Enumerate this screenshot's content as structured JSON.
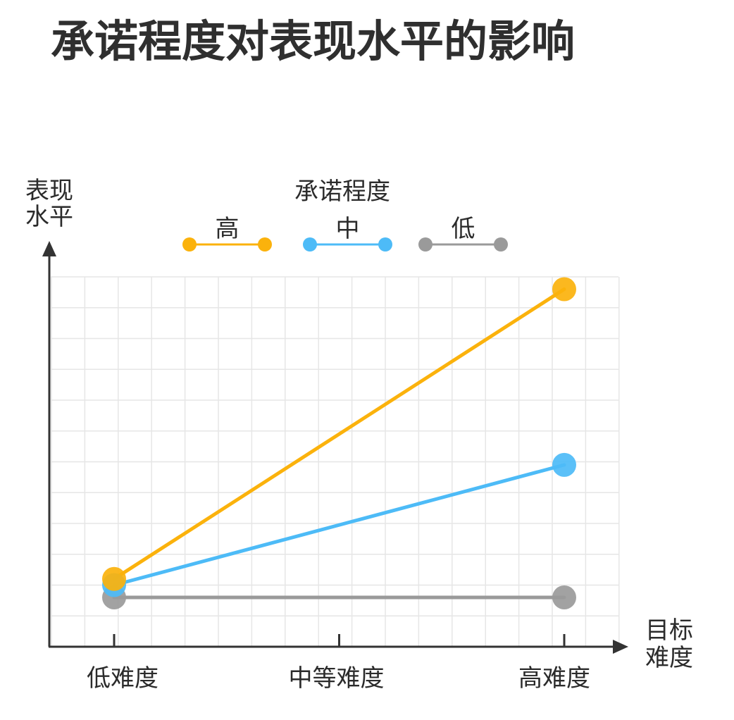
{
  "title": "承诺程度对表现水平的影响",
  "chart_data": {
    "type": "line",
    "title": "承诺程度对表现水平的影响",
    "ylabel_lines": [
      "表现",
      "水平"
    ],
    "xlabel_lines": [
      "目标",
      "难度"
    ],
    "legend_title": "承诺程度",
    "legend_position": "top",
    "categories": [
      "低难度",
      "中等难度",
      "高难度"
    ],
    "x_positions": [
      0,
      1,
      2
    ],
    "ylim": [
      0,
      12
    ],
    "grid": true,
    "series": [
      {
        "name": "高",
        "color": "#FBB20C",
        "points": [
          [
            0,
            2.2
          ],
          [
            2,
            11.6
          ]
        ]
      },
      {
        "name": "中",
        "color": "#4DBBF7",
        "points": [
          [
            0,
            2.0
          ],
          [
            2,
            5.9
          ]
        ]
      },
      {
        "name": "低",
        "color": "#9A9A9A",
        "points": [
          [
            0,
            1.6
          ],
          [
            2,
            1.6
          ]
        ]
      }
    ]
  }
}
